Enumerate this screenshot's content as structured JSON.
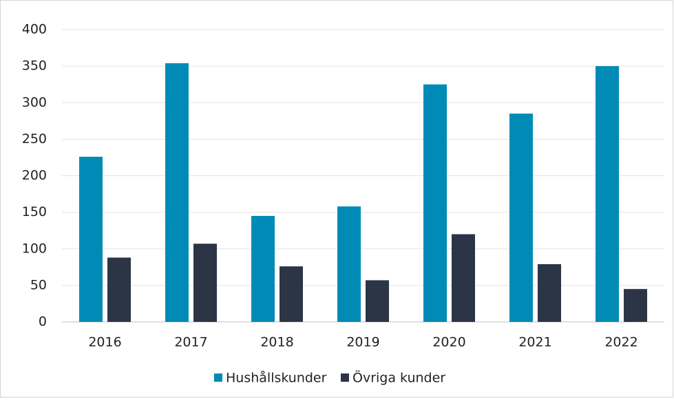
{
  "chart_data": {
    "type": "bar",
    "categories": [
      "2016",
      "2017",
      "2018",
      "2019",
      "2020",
      "2021",
      "2022"
    ],
    "series": [
      {
        "name": "Hushållskunder",
        "color": "#008bb7",
        "values": [
          226,
          354,
          145,
          158,
          325,
          285,
          350
        ]
      },
      {
        "name": "Övriga kunder",
        "color": "#2c3546",
        "values": [
          88,
          107,
          76,
          57,
          120,
          79,
          45
        ]
      }
    ],
    "ylim": [
      0,
      400
    ],
    "yticks": [
      0,
      50,
      100,
      150,
      200,
      250,
      300,
      350,
      400
    ],
    "grid": true,
    "legend": "bottom"
  }
}
